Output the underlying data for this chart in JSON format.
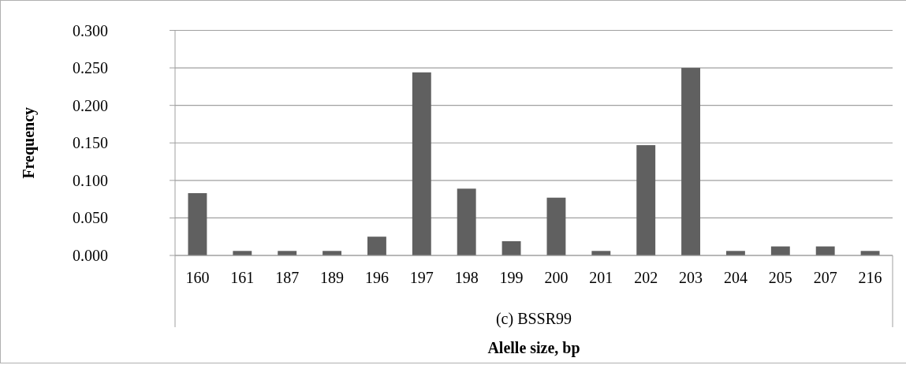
{
  "chart_data": {
    "type": "bar",
    "xlabel": "Alelle size, bp",
    "ylabel": "Frequency",
    "categories": [
      "160",
      "161",
      "187",
      "189",
      "196",
      "197",
      "198",
      "199",
      "200",
      "201",
      "202",
      "203",
      "204",
      "205",
      "207",
      "216"
    ],
    "values": [
      0.083,
      0.006,
      0.006,
      0.006,
      0.025,
      0.244,
      0.089,
      0.019,
      0.077,
      0.006,
      0.147,
      0.25,
      0.006,
      0.012,
      0.012,
      0.006
    ],
    "color": "#606060",
    "ylim": [
      0,
      0.3
    ],
    "yticks": [
      {
        "value": 0,
        "label": "0.000"
      },
      {
        "value": 0.05,
        "label": "0.050"
      },
      {
        "value": 0.1,
        "label": "0.100"
      },
      {
        "value": 0.15,
        "label": "0.150"
      },
      {
        "value": 0.2,
        "label": "0.200"
      },
      {
        "value": 0.25,
        "label": "0.250"
      },
      {
        "value": 0.3,
        "label": "0.300"
      }
    ],
    "grid": "y",
    "annotations": [
      "(c) BSSR99"
    ]
  }
}
